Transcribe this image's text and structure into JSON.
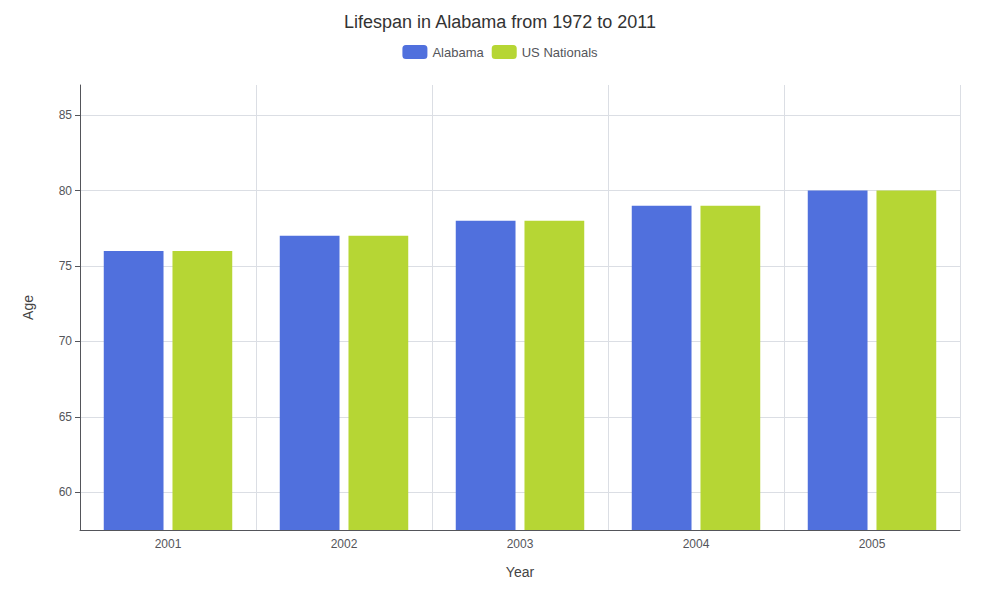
{
  "chart_data": {
    "type": "bar",
    "title": "Lifespan in Alabama from 1972 to 2011",
    "xlabel": "Year",
    "ylabel": "Age",
    "categories": [
      "2001",
      "2002",
      "2003",
      "2004",
      "2005"
    ],
    "series": [
      {
        "name": "Alabama",
        "values": [
          76,
          77,
          78,
          79,
          80
        ]
      },
      {
        "name": "US Nationals",
        "values": [
          76,
          77,
          78,
          79,
          80
        ]
      }
    ],
    "ylim": [
      57.5,
      87
    ],
    "yticks": [
      60,
      65,
      70,
      75,
      80,
      85
    ],
    "grid": true,
    "legend": "top"
  }
}
